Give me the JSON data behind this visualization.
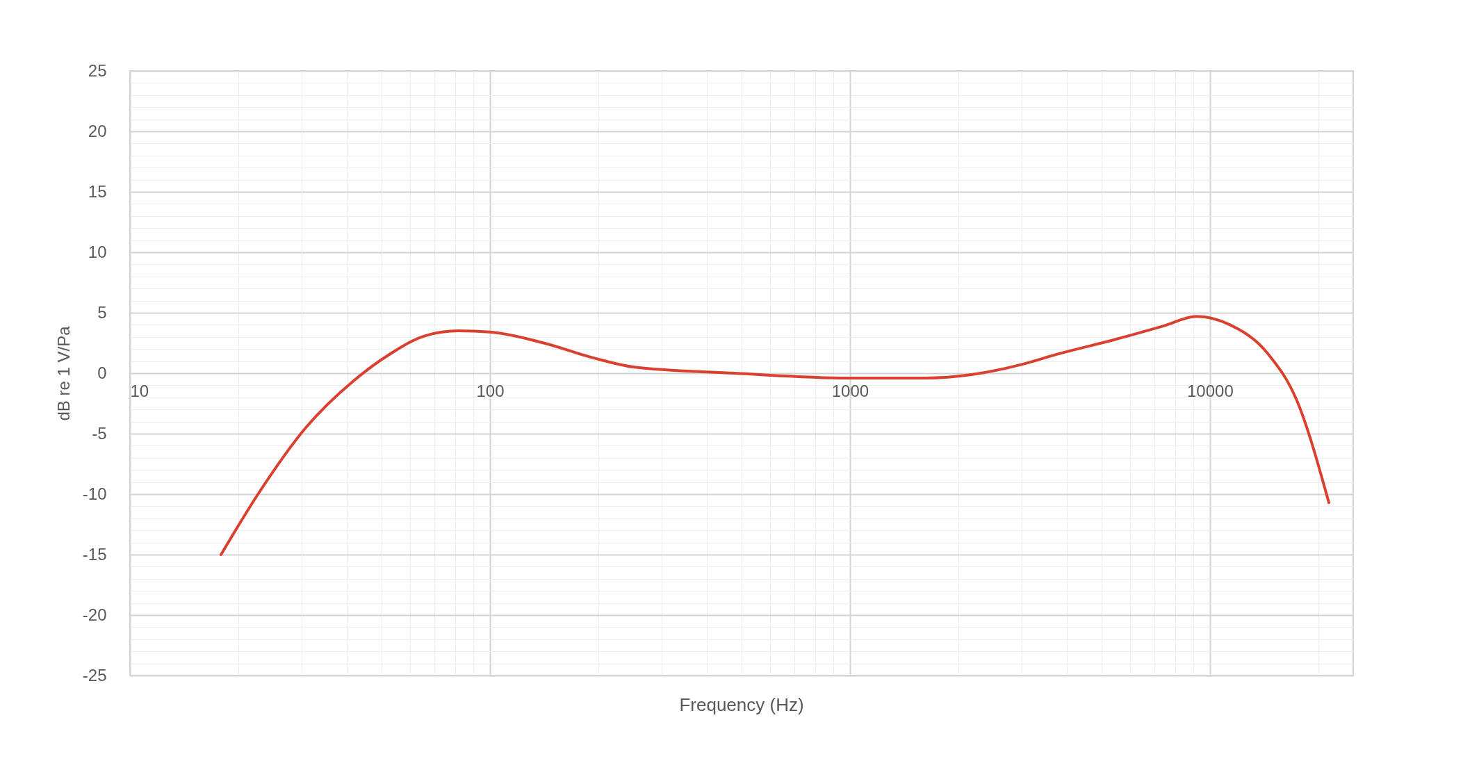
{
  "chart_data": {
    "type": "line",
    "xlabel": "Frequency (Hz)",
    "ylabel": "dB re 1 V/Pa",
    "log": "x",
    "grid": true,
    "marker": "none",
    "line_style": "solid",
    "x": [
      17.9,
      22.8,
      30.8,
      41.9,
      53.5,
      66.1,
      81.8,
      100,
      141,
      192,
      252,
      479,
      1000,
      1618,
      2193,
      2976,
      3795,
      5470,
      7420,
      9180,
      11370,
      14500,
      17400,
      21400
    ],
    "series": [
      {
        "color": "#d9402f",
        "values": [
          -15,
          -9.9,
          -4.5,
          -0.6,
          1.7,
          3.1,
          3.5,
          3.4,
          2.5,
          1.3,
          0.5,
          0,
          -0.4,
          -0.4,
          -0.1,
          0.7,
          1.6,
          2.8,
          3.9,
          4.7,
          4.0,
          1.6,
          -2.2,
          -10.7
        ]
      }
    ],
    "xlim": [
      10,
      25000
    ],
    "xticks": [
      10,
      {
        "value": 20,
        "label": null
      },
      {
        "value": 30,
        "label": null
      },
      {
        "value": 40,
        "label": null
      },
      {
        "value": 50,
        "label": null
      },
      {
        "value": 60,
        "label": null
      },
      {
        "value": 70,
        "label": null
      },
      {
        "value": 80,
        "label": null
      },
      {
        "value": 90,
        "label": null
      },
      100,
      {
        "value": 200,
        "label": null
      },
      {
        "value": 300,
        "label": null
      },
      {
        "value": 400,
        "label": null
      },
      {
        "value": 500,
        "label": null
      },
      {
        "value": 600,
        "label": null
      },
      {
        "value": 700,
        "label": null
      },
      {
        "value": 800,
        "label": null
      },
      {
        "value": 900,
        "label": null
      },
      1000,
      {
        "value": 2000,
        "label": null
      },
      {
        "value": 3000,
        "label": null
      },
      {
        "value": 4000,
        "label": null
      },
      {
        "value": 5000,
        "label": null
      },
      {
        "value": 6000,
        "label": null
      },
      {
        "value": 7000,
        "label": null
      },
      {
        "value": 8000,
        "label": null
      },
      {
        "value": 9000,
        "label": null
      },
      10000,
      {
        "value": 20000,
        "label": null
      }
    ],
    "ylim": [
      -25,
      25
    ],
    "yticks": [
      -25,
      {
        "value": -24,
        "label": null
      },
      {
        "value": -23,
        "label": null
      },
      {
        "value": -22,
        "label": null
      },
      {
        "value": -21,
        "label": null
      },
      -20,
      {
        "value": -19,
        "label": null
      },
      {
        "value": -18,
        "label": null
      },
      {
        "value": -17,
        "label": null
      },
      {
        "value": -16,
        "label": null
      },
      -15,
      {
        "value": -14,
        "label": null
      },
      {
        "value": -13,
        "label": null
      },
      {
        "value": -12,
        "label": null
      },
      {
        "value": -11,
        "label": null
      },
      -10,
      {
        "value": -9,
        "label": null
      },
      {
        "value": -8,
        "label": null
      },
      {
        "value": -7,
        "label": null
      },
      {
        "value": -6,
        "label": null
      },
      -5,
      {
        "value": -4,
        "label": null
      },
      {
        "value": -3,
        "label": null
      },
      {
        "value": -2,
        "label": null
      },
      {
        "value": -1,
        "label": null
      },
      0,
      {
        "value": 1,
        "label": null
      },
      {
        "value": 2,
        "label": null
      },
      {
        "value": 3,
        "label": null
      },
      {
        "value": 4,
        "label": null
      },
      5,
      {
        "value": 6,
        "label": null
      },
      {
        "value": 7,
        "label": null
      },
      {
        "value": 8,
        "label": null
      },
      {
        "value": 9,
        "label": null
      },
      10,
      {
        "value": 11,
        "label": null
      },
      {
        "value": 12,
        "label": null
      },
      {
        "value": 13,
        "label": null
      },
      {
        "value": 14,
        "label": null
      },
      15,
      {
        "value": 16,
        "label": null
      },
      {
        "value": 17,
        "label": null
      },
      {
        "value": 18,
        "label": null
      },
      {
        "value": 19,
        "label": null
      },
      20,
      {
        "value": 21,
        "label": null
      },
      {
        "value": 22,
        "label": null
      },
      {
        "value": 23,
        "label": null
      },
      {
        "value": 24,
        "label": null
      },
      25
    ]
  }
}
